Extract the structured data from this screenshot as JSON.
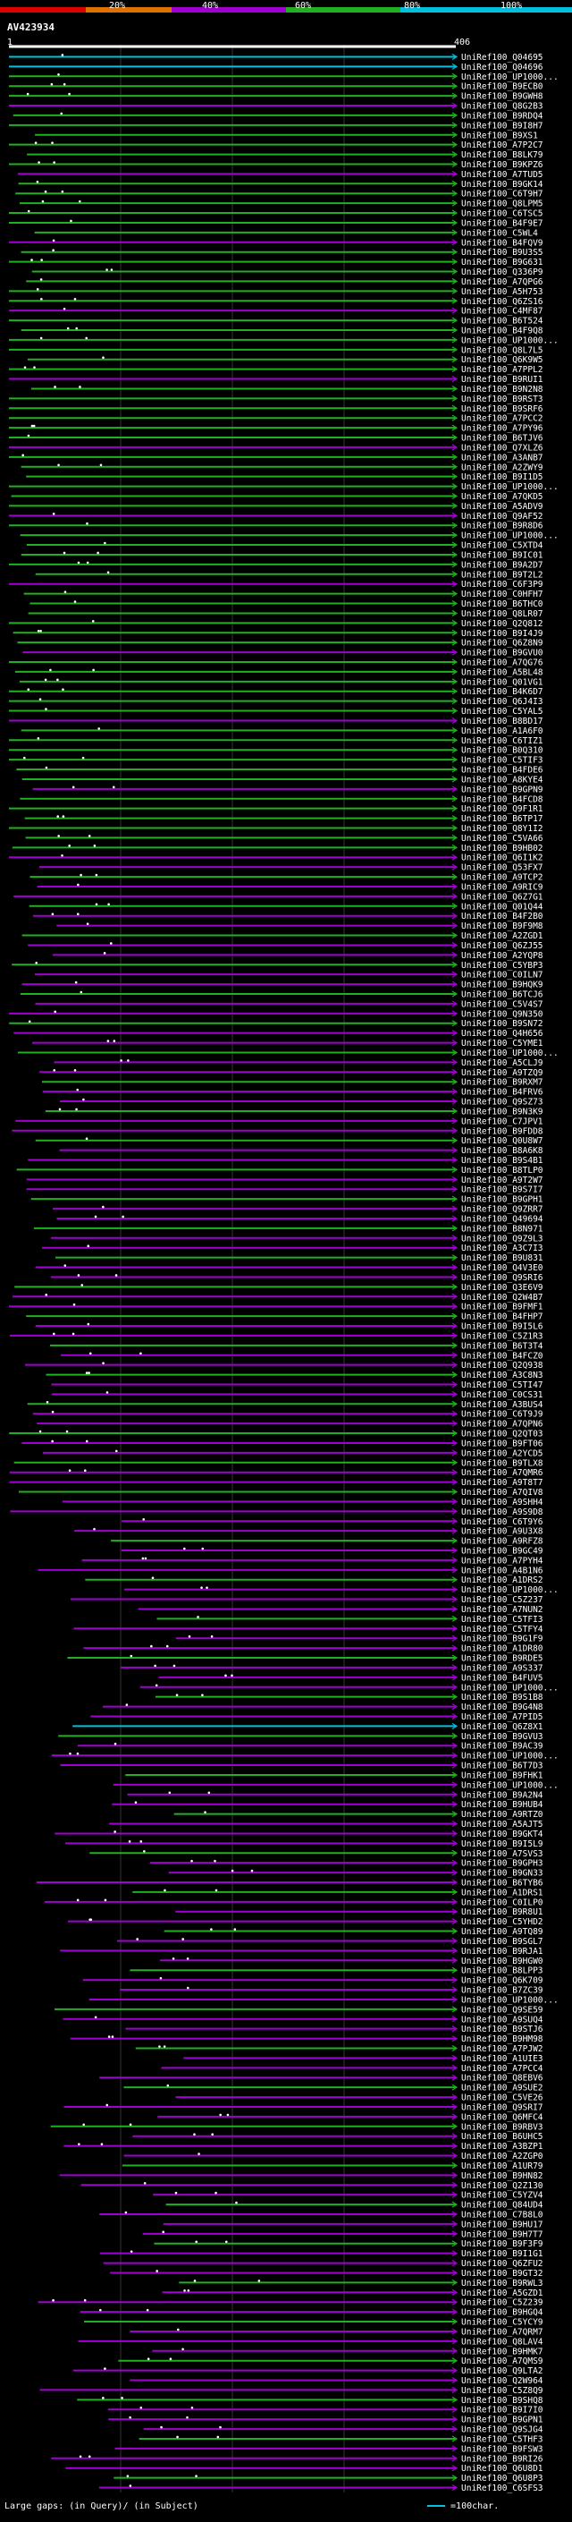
{
  "scale": {
    "ticks": [
      "20%",
      "40%",
      "60%",
      "80%",
      "100%"
    ],
    "colors": [
      "#e00000",
      "#e07000",
      "#a000d0",
      "#20b020",
      "#00c0e0"
    ]
  },
  "query": {
    "id": "AV423934",
    "start": "1",
    "end": "406"
  },
  "legend": {
    "text": "Large gaps: (in Query)/ (in Subject)",
    "scale_text": "=100char."
  },
  "hits": [
    "UniRef100_Q04695",
    "UniRef100_Q04696",
    "UniRef100_UP1000...",
    "UniRef100_B9ECB0",
    "UniRef100_B9GWH8",
    "UniRef100_Q8G2B3",
    "UniRef100_B9RDQ4",
    "UniRef100_B9I8H7",
    "UniRef100_B9XS1",
    "UniRef100_A7P2C7",
    "UniRef100_B8LK79",
    "UniRef100_B9KPZ6",
    "UniRef100_A7TUD5",
    "UniRef100_B9GK14",
    "UniRef100_C6T9H7",
    "UniRef100_Q8LPM5",
    "UniRef100_C6TSC5",
    "UniRef100_B4F9E7",
    "UniRef100_C5WL4",
    "UniRef100_B4FQV9",
    "UniRef100_B9U3S5",
    "UniRef100_B9G631",
    "UniRef100_Q336P9",
    "UniRef100_A7QPG6",
    "UniRef100_A5H753",
    "UniRef100_Q6ZS16",
    "UniRef100_C4MF87",
    "UniRef100_B6T524",
    "UniRef100_B4F9Q8",
    "UniRef100_UP1000...",
    "UniRef100_Q8L7L5",
    "UniRef100_Q6K9W5",
    "UniRef100_A7PPL2",
    "UniRef100_B9RUI1",
    "UniRef100_B9N2N8",
    "UniRef100_B9RST3",
    "UniRef100_B9SRF6",
    "UniRef100_A7PCC2",
    "UniRef100_A7PY96",
    "UniRef100_B6TJV6",
    "UniRef100_Q7XLZ6",
    "UniRef100_A3ANB7",
    "UniRef100_A2ZWY9",
    "UniRef100_B9I1D5",
    "UniRef100_UP1000...",
    "UniRef100_A7QKD5",
    "UniRef100_A5ADV9",
    "UniRef100_Q9AF52",
    "UniRef100_B9R8D6",
    "UniRef100_UP1000...",
    "UniRef100_C5XTD4",
    "UniRef100_B9IC01",
    "UniRef100_B9A2D7",
    "UniRef100_B9T2L2",
    "UniRef100_C6F3P9",
    "UniRef100_C0HFH7",
    "UniRef100_B6THC0",
    "UniRef100_Q8LR07",
    "UniRef100_Q2Q812",
    "UniRef100_B9I4J9",
    "UniRef100_Q6Z8N9",
    "UniRef100_B9GVU0",
    "UniRef100_A7QG76",
    "UniRef100_A5BL48",
    "UniRef100_Q01VG1",
    "UniRef100_B4K6D7",
    "UniRef100_Q6J4I3",
    "UniRef100_C5YAL5",
    "UniRef100_B8BD17",
    "UniRef100_A1A6F0",
    "UniRef100_C6TIZ1",
    "UniRef100_B0Q310",
    "UniRef100_C5TIF3",
    "UniRef100_B4FDE6",
    "UniRef100_A8KYE4",
    "UniRef100_B9GPN9",
    "UniRef100_B4FCD8",
    "UniRef100_Q9F1R1",
    "UniRef100_B6TP17",
    "UniRef100_Q8Y1I2",
    "UniRef100_C5VA66",
    "UniRef100_B9HB02",
    "UniRef100_Q6I1K2",
    "UniRef100_Q53FX7",
    "UniRef100_A9TCP2",
    "UniRef100_A9RIC9",
    "UniRef100_Q6Z7G1",
    "UniRef100_Q01Q44",
    "UniRef100_B4F2B0",
    "UniRef100_B9F9M8",
    "UniRef100_A2ZGD1",
    "UniRef100_Q6ZJ55",
    "UniRef100_A2YQP8",
    "UniRef100_C5YBP3",
    "UniRef100_C0ILN7",
    "UniRef100_B9HQK9",
    "UniRef100_B6TCJ6",
    "UniRef100_C5V4S7",
    "UniRef100_Q9N350",
    "UniRef100_B9SN72",
    "UniRef100_Q4H656",
    "UniRef100_C5YME1",
    "UniRef100_UP1000...",
    "UniRef100_A5CLJ9",
    "UniRef100_A9TZQ9",
    "UniRef100_B9RXM7",
    "UniRef100_B4FRV6",
    "UniRef100_Q9SZ73",
    "UniRef100_B9N3K9",
    "UniRef100_C7JPV1",
    "UniRef100_B9FDD8",
    "UniRef100_Q0U8W7",
    "UniRef100_B8A6K8",
    "UniRef100_B9S4B1",
    "UniRef100_B8TLP0",
    "UniRef100_A9T2W7",
    "UniRef100_B9S7I7",
    "UniRef100_B9GPH1",
    "UniRef100_Q9ZRR7",
    "UniRef100_Q49694",
    "UniRef100_B8N971",
    "UniRef100_Q9Z9L3",
    "UniRef100_A3C7I3",
    "UniRef100_B9U831",
    "UniRef100_Q4V3E0",
    "UniRef100_Q9SRI6",
    "UniRef100_Q3E6V9",
    "UniRef100_Q2W4B7",
    "UniRef100_B9FMF1",
    "UniRef100_B4FHP7",
    "UniRef100_B9I5L6",
    "UniRef100_C5Z1R3",
    "UniRef100_B6T3T4",
    "UniRef100_B4FCZ0",
    "UniRef100_Q2Q938",
    "UniRef100_A3C8N3",
    "UniRef100_C5TI47",
    "UniRef100_C0CS31",
    "UniRef100_A3BUS4",
    "UniRef100_C6T9J9",
    "UniRef100_A7QPN6",
    "UniRef100_Q2QT03",
    "UniRef100_B9FT06",
    "UniRef100_A2YCD5",
    "UniRef100_B9TLX8",
    "UniRef100_A7QMR6",
    "UniRef100_A9T8T7",
    "UniRef100_A7QIV8",
    "UniRef100_A9SHH4",
    "UniRef100_A9S9D8",
    "UniRef100_C6T9Y6",
    "UniRef100_A9U3X8",
    "UniRef100_A9RFZ8",
    "UniRef100_B9GC49",
    "UniRef100_A7PYH4",
    "UniRef100_A4B1N6",
    "UniRef100_A1DRS2",
    "UniRef100_UP1000...",
    "UniRef100_C5Z237",
    "UniRef100_A7NUN2",
    "UniRef100_C5TFI3",
    "UniRef100_C5TFY4",
    "UniRef100_B9G1F9",
    "UniRef100_A1DR80",
    "UniRef100_B9RDE5",
    "UniRef100_A9S337",
    "UniRef100_B4FUV5",
    "UniRef100_UP1000...",
    "UniRef100_B9S1B8",
    "UniRef100_B9G4N8",
    "UniRef100_A7PID5",
    "UniRef100_Q6Z8X1",
    "UniRef100_B9GVU3",
    "UniRef100_B9AC39",
    "UniRef100_UP1000...",
    "UniRef100_B6T7D3",
    "UniRef100_B9FHK1",
    "UniRef100_UP1000...",
    "UniRef100_B9A2N4",
    "UniRef100_B9HUB4",
    "UniRef100_A9RTZ0",
    "UniRef100_A5AJT5",
    "UniRef100_B9GKT4",
    "UniRef100_B9I5L9",
    "UniRef100_A7SVS3",
    "UniRef100_B9GPH3",
    "UniRef100_B9GN33",
    "UniRef100_B6TYB6",
    "UniRef100_A1DRS1",
    "UniRef100_C0ILP0",
    "UniRef100_B9R8U1",
    "UniRef100_C5YHD2",
    "UniRef100_A9TQ89",
    "UniRef100_B9SGL7",
    "UniRef100_B9RJA1",
    "UniRef100_B9HGW0",
    "UniRef100_B8LPP3",
    "UniRef100_Q6K709",
    "UniRef100_B7ZC39",
    "UniRef100_UP1000...",
    "UniRef100_Q9SE59",
    "UniRef100_A9SUQ4",
    "UniRef100_B9STJ6",
    "UniRef100_B9HM98",
    "UniRef100_A7PJW2",
    "UniRef100_A1UIE3",
    "UniRef100_A7PCC4",
    "UniRef100_Q8EBV6",
    "UniRef100_A9SUE2",
    "UniRef100_C5VE26",
    "UniRef100_Q9SRI7",
    "UniRef100_Q6MFC4",
    "UniRef100_B9RBV3",
    "UniRef100_B6UHC5",
    "UniRef100_A3BZP1",
    "UniRef100_A2ZGP0",
    "UniRef100_A1UR79",
    "UniRef100_B9HN82",
    "UniRef100_Q2Z130",
    "UniRef100_C5YZV4",
    "UniRef100_Q84UD4",
    "UniRef100_C7B8L0",
    "UniRef100_B9HU17",
    "UniRef100_B9H7T7",
    "UniRef100_B9F3F9",
    "UniRef100_B9I1G1",
    "UniRef100_Q6ZFU2",
    "UniRef100_B9GT32",
    "UniRef100_B9RWL3",
    "UniRef100_A5GZD1",
    "UniRef100_C5Z239",
    "UniRef100_B9HGQ4",
    "UniRef100_C5YCY9",
    "UniRef100_A7QRM7",
    "UniRef100_Q8LAV4",
    "UniRef100_B9HMK7",
    "UniRef100_A7QMS9",
    "UniRef100_Q9LTA2",
    "UniRef100_Q2W964",
    "UniRef100_C5Z8Q9",
    "UniRef100_B9SHQ8",
    "UniRef100_B9I7I0",
    "UniRef100_B9GPN1",
    "UniRef100_Q9SJG4",
    "UniRef100_C5THF3",
    "UniRef100_B9FSW3",
    "UniRef100_B9RI26",
    "UniRef100_Q6U8D1",
    "UniRef100_Q6U8P3",
    "UniRef100_C6SFS3"
  ]
}
